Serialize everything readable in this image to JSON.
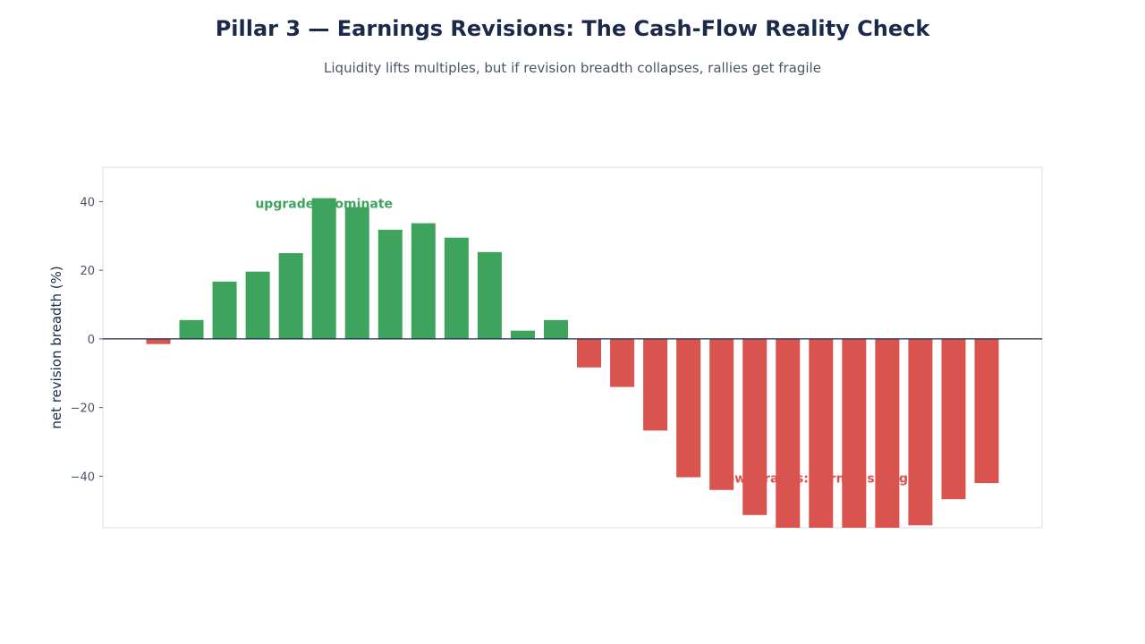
{
  "header": {
    "title": "Pillar 3 — Earnings Revisions: The Cash-Flow Reality Check",
    "subtitle": "Liquidity lifts multiples, but if revision breadth collapses, rallies get fragile"
  },
  "chart_data": {
    "type": "bar",
    "title": "Pillar 3 — Earnings Revisions: The Cash-Flow Reality Check",
    "subtitle": "Liquidity lifts multiples, but if revision breadth collapses, rallies get fragile",
    "xlabel": "",
    "ylabel": "net revision breadth (%)",
    "ylim": [
      -55,
      50
    ],
    "yticks": [
      40,
      20,
      0,
      -20,
      -40
    ],
    "ytick_labels": [
      "40",
      "20",
      "0",
      "−20",
      "−40"
    ],
    "grid": false,
    "values": [
      -1.5,
      5.5,
      16.7,
      19.6,
      25.0,
      41.0,
      38.4,
      31.8,
      33.7,
      29.5,
      25.3,
      2.4,
      5.5,
      -8.3,
      -14.0,
      -26.7,
      -40.3,
      -44.0,
      -51.3,
      -55.0,
      -55.0,
      -55.0,
      -55.0,
      -54.3,
      -46.7,
      -42.0
    ],
    "colors": {
      "positive": "#3da35d",
      "negative": "#d9534f",
      "zero_line": "#1b2a4a",
      "frame": "#dddddd",
      "tick_text": "#4a5568",
      "axis_label": "#1b2a4a"
    },
    "annotations": [
      {
        "text": "upgrades dominate",
        "bar_index": 5,
        "y": 39.5,
        "color": "#3da35d"
      },
      {
        "text": "downgrades: earnings fragile",
        "bar_index": 20,
        "y": -40.5,
        "color": "#d9534f"
      }
    ]
  }
}
